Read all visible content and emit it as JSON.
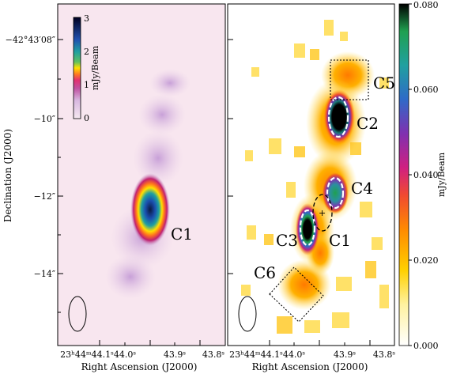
{
  "left_panel": {
    "colorbar": {
      "ticks": [
        "3",
        "2",
        "1",
        "0"
      ],
      "unit": "mJy/Beam"
    },
    "dec_ticks": [
      "−42°43′08″",
      "−10″",
      "−12″",
      "−14″"
    ],
    "ra_ticks": [
      "23ʰ44ᵐ44.1ˢ",
      "44.0ˢ",
      "43.9ˢ",
      "43.8ˢ"
    ],
    "component_labels": [
      "C1"
    ]
  },
  "right_panel": {
    "colorbar": {
      "ticks": [
        "0.080",
        "0.060",
        "0.040",
        "0.020",
        "0.000"
      ],
      "unit": "mJy/Beam"
    },
    "ra_ticks": [
      "23ʰ44ᵐ44.1ˢ",
      "44.0ˢ",
      "43.9ˢ",
      "43.8ˢ"
    ],
    "component_labels": [
      "C5",
      "C2",
      "C4",
      "C3",
      "C1",
      "C6"
    ],
    "center_marker": "+"
  },
  "axes": {
    "ylabel": "Declination (J2000)",
    "xlabel": "Right Ascension (J2000)"
  },
  "colors": {
    "left_background": "#f8e6ef",
    "right_background": "#ffffff",
    "map_colormap": [
      "#ffffff",
      "#ffe000",
      "#ff9a00",
      "#ff5a1e",
      "#e0207a",
      "#a038c0",
      "#2f7ac8",
      "#20b070",
      "#000000"
    ]
  }
}
